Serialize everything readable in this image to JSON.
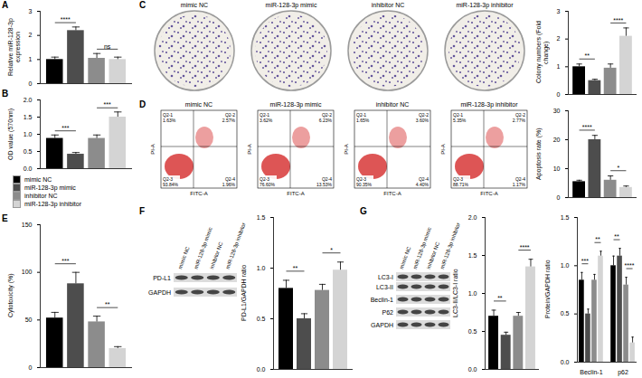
{
  "series": [
    {
      "name": "mimic NC",
      "color": "#000000"
    },
    {
      "name": "miR-128-3p mimic",
      "color": "#4d4d4d"
    },
    {
      "name": "inhibitor NC",
      "color": "#8c8c8c"
    },
    {
      "name": "miR-128-3p inhibitor",
      "color": "#d4d4d4"
    }
  ],
  "legend": "left",
  "chart_data": [
    {
      "panel": "A",
      "type": "bar",
      "ylabel": "Relative miR-128-3p expression",
      "categories": [
        null
      ],
      "ylim": [
        0,
        3
      ],
      "yticks": [
        0,
        1,
        2,
        3
      ],
      "tick_labels": "y",
      "values": [
        [
          1.0
        ],
        [
          2.2
        ],
        [
          1.05
        ],
        [
          1.0
        ]
      ],
      "errors": [
        [
          0.1
        ],
        [
          0.15
        ],
        [
          0.2
        ],
        [
          0.1
        ]
      ],
      "annotations": [
        {
          "between": [
            "mimic NC",
            "miR-128-3p mimic"
          ],
          "label": "****"
        },
        {
          "between": [
            "inhibitor NC",
            "miR-128-3p inhibitor"
          ],
          "label": "ns"
        }
      ]
    },
    {
      "panel": "B",
      "type": "bar",
      "ylabel": "OD value (570nm)",
      "categories": [
        null
      ],
      "ylim": [
        0,
        2
      ],
      "yticks": [
        {
          "value": 0,
          "label": "0.0"
        },
        {
          "value": 0.5,
          "label": "0.5"
        },
        {
          "value": 1,
          "label": "1.0"
        },
        {
          "value": 1.5,
          "label": "1.5"
        },
        {
          "value": 2,
          "label": "2.0"
        }
      ],
      "tick_labels": "y",
      "values": [
        [
          0.88
        ],
        [
          0.42
        ],
        [
          0.88
        ],
        [
          1.5
        ]
      ],
      "errors": [
        [
          0.1
        ],
        [
          0.05
        ],
        [
          0.1
        ],
        [
          0.15
        ]
      ],
      "annotations": [
        {
          "between": [
            "mimic NC",
            "miR-128-3p mimic"
          ],
          "label": "***"
        },
        {
          "between": [
            "inhibitor NC",
            "miR-128-3p inhibitor"
          ],
          "label": "***"
        }
      ]
    },
    {
      "panel": "C",
      "type": "bar",
      "ylabel": "Colony numbers (Fold change)",
      "categories": [
        null
      ],
      "ylim": [
        0,
        3
      ],
      "yticks": [
        0,
        1,
        2,
        3
      ],
      "tick_labels": "y",
      "values": [
        [
          1.0
        ],
        [
          0.5
        ],
        [
          0.95
        ],
        [
          2.1
        ]
      ],
      "errors": [
        [
          0.1
        ],
        [
          0.05
        ],
        [
          0.15
        ],
        [
          0.3
        ]
      ],
      "annotations": [
        {
          "between": [
            "mimic NC",
            "miR-128-3p mimic"
          ],
          "label": "**"
        },
        {
          "between": [
            "inhibitor NC",
            "miR-128-3p inhibitor"
          ],
          "label": "****"
        }
      ]
    },
    {
      "panel": "D",
      "type": "bar",
      "ylabel": "Apoptosis rate (%)",
      "categories": [
        null
      ],
      "ylim": [
        0,
        30
      ],
      "yticks": [
        0,
        10,
        20,
        30
      ],
      "tick_labels": "y",
      "values": [
        [
          5.5
        ],
        [
          20
        ],
        [
          6
        ],
        [
          3.5
        ]
      ],
      "errors": [
        [
          0.5
        ],
        [
          1.5
        ],
        [
          1.5
        ],
        [
          0.5
        ]
      ],
      "annotations": [
        {
          "between": [
            "mimic NC",
            "miR-128-3p mimic"
          ],
          "label": "****"
        },
        {
          "between": [
            "inhibitor NC",
            "miR-128-3p inhibitor"
          ],
          "label": "*"
        }
      ]
    },
    {
      "panel": "E",
      "type": "bar",
      "ylabel": "Cytotoxicity (%)",
      "categories": [
        null
      ],
      "ylim": [
        0,
        150
      ],
      "yticks": [
        0,
        50,
        100,
        150
      ],
      "tick_labels": "y",
      "values": [
        [
          52
        ],
        [
          88
        ],
        [
          48
        ],
        [
          20
        ]
      ],
      "errors": [
        [
          6
        ],
        [
          12
        ],
        [
          6
        ],
        [
          2
        ]
      ],
      "annotations": [
        {
          "between": [
            "mimic NC",
            "miR-128-3p mimic"
          ],
          "label": "***"
        },
        {
          "between": [
            "inhibitor NC",
            "miR-128-3p inhibitor"
          ],
          "label": "**"
        }
      ]
    },
    {
      "panel": "F",
      "type": "bar",
      "ylabel": "PD-L1/GAPDH ratio",
      "categories": [
        null
      ],
      "ylim": [
        0,
        1.5
      ],
      "yticks": [
        {
          "value": 0,
          "label": "0.0"
        },
        {
          "value": 0.5,
          "label": "0.5"
        },
        {
          "value": 1,
          "label": "1.0"
        },
        {
          "value": 1.5,
          "label": "1.5"
        }
      ],
      "tick_labels": "y",
      "values": [
        [
          0.8
        ],
        [
          0.5
        ],
        [
          0.78
        ],
        [
          0.98
        ]
      ],
      "errors": [
        [
          0.08
        ],
        [
          0.05
        ],
        [
          0.06
        ],
        [
          0.08
        ]
      ],
      "annotations": [
        {
          "between": [
            "mimic NC",
            "miR-128-3p mimic"
          ],
          "label": "**"
        },
        {
          "between": [
            "inhibitor NC",
            "miR-128-3p inhibitor"
          ],
          "label": "*"
        }
      ]
    },
    {
      "panel": "G",
      "type": "bar",
      "ylabel": "LC3-II/LC3-I ratio",
      "categories": [
        null
      ],
      "ylim": [
        0,
        2
      ],
      "yticks": [
        {
          "value": 0,
          "label": "0.0"
        },
        {
          "value": 0.5,
          "label": "0.5"
        },
        {
          "value": 1,
          "label": "1.0"
        },
        {
          "value": 1.5,
          "label": "1.5"
        },
        {
          "value": 2,
          "label": "2.0"
        }
      ],
      "tick_labels": "y",
      "values": [
        [
          0.7
        ],
        [
          0.45
        ],
        [
          0.7
        ],
        [
          1.35
        ]
      ],
      "errors": [
        [
          0.08
        ],
        [
          0.04
        ],
        [
          0.05
        ],
        [
          0.1
        ]
      ],
      "annotations": [
        {
          "between": [
            "mimic NC",
            "miR-128-3p mimic"
          ],
          "label": "**"
        },
        {
          "between": [
            "inhibitor NC",
            "miR-128-3p inhibitor"
          ],
          "label": "****"
        }
      ]
    },
    {
      "panel": "G",
      "type": "bar",
      "ylabel": "Protein/GAPDH ratio",
      "categories": [
        "Beclin-1",
        "p62"
      ],
      "ylim": [
        0,
        1.5
      ],
      "yticks": [
        {
          "value": 0,
          "label": "0.0"
        },
        {
          "value": 0.5,
          "label": "0.5"
        },
        {
          "value": 1,
          "label": "1.0"
        },
        {
          "value": 1.5,
          "label": "1.5"
        }
      ],
      "tick_labels": true,
      "values": [
        [
          0.85,
          1.0
        ],
        [
          0.5,
          1.1
        ],
        [
          0.85,
          0.8
        ],
        [
          1.1,
          0.2
        ]
      ],
      "errors": [
        [
          0.08,
          0.1
        ],
        [
          0.05,
          0.08
        ],
        [
          0.06,
          0.08
        ],
        [
          0.05,
          0.06
        ]
      ],
      "annotations": [
        {
          "category": "Beclin-1",
          "between": [
            "mimic NC",
            "miR-128-3p mimic"
          ],
          "label": "***"
        },
        {
          "category": "Beclin-1",
          "between": [
            "inhibitor NC",
            "miR-128-3p inhibitor"
          ],
          "label": "**"
        },
        {
          "category": "p62",
          "between": [
            "mimic NC",
            "miR-128-3p mimic"
          ],
          "label": "**"
        },
        {
          "category": "p62",
          "between": [
            "inhibitor NC",
            "miR-128-3p inhibitor"
          ],
          "label": "****"
        }
      ]
    }
  ],
  "images": [
    {
      "panel": "C",
      "titles": [
        "mimic NC",
        "miR-128-3p mimic",
        "inhibitor NC",
        "miR-128-3p inhibitor"
      ]
    },
    {
      "panel": "D",
      "titles": [
        "mimic NC",
        "miR-128-3p mimic",
        "inhibitor NC",
        "miR-128-3p inhibitor"
      ],
      "xlabel": "FITC-A",
      "ylabel": "PI-A",
      "quadrants": [
        [
          {
            "name": "Q2-1",
            "value": "1.63%"
          },
          {
            "name": "Q2-2",
            "value": "2.57%"
          },
          {
            "name": "Q2-3",
            "value": "93.84%"
          },
          {
            "name": "Q2-4",
            "value": "1.96%"
          }
        ],
        [
          {
            "name": "Q2-1",
            "value": "3.62%"
          },
          {
            "name": "Q2-2",
            "value": "6.23%"
          },
          {
            "name": "Q2-3",
            "value": "76.60%"
          },
          {
            "name": "Q2-4",
            "value": "13.53%"
          }
        ],
        [
          {
            "name": "Q2-1",
            "value": "1.65%"
          },
          {
            "name": "Q2-2",
            "value": "3.60%"
          },
          {
            "name": "Q2-3",
            "value": "90.35%"
          },
          {
            "name": "Q2-4",
            "value": "4.40%"
          }
        ],
        [
          {
            "name": "Q2-1",
            "value": "5.35%"
          },
          {
            "name": "Q2-2",
            "value": "2.77%"
          },
          {
            "name": "Q2-3",
            "value": "88.71%"
          },
          {
            "name": "Q2-4",
            "value": "1.17%"
          }
        ]
      ]
    },
    {
      "panel": "F",
      "lanes": [
        "mimic NC",
        "miR-128-3p mimic",
        "inhibitor NC",
        "miR-128-3p inhibitor"
      ],
      "rows": [
        "PD-L1",
        "GAPDH"
      ]
    },
    {
      "panel": "G",
      "lanes": [
        "mimic NC",
        "miR-128-3p mimic",
        "inhibitor NC",
        "miR-128-3p inhibitor"
      ],
      "rows": [
        "LC3-I",
        "LC3-II",
        "Beclin-1",
        "P62",
        "GAPDH"
      ]
    }
  ]
}
